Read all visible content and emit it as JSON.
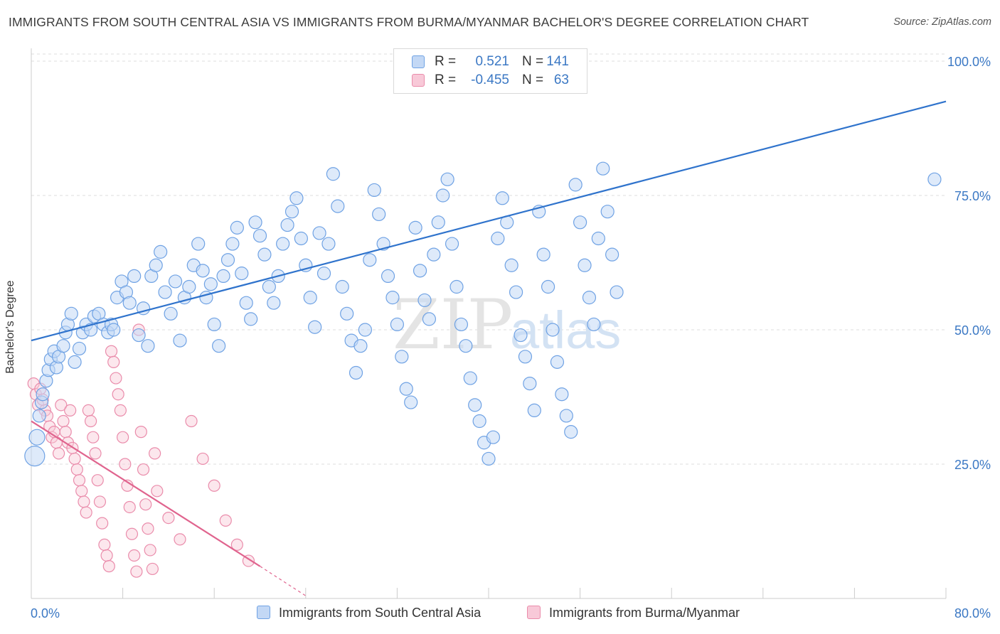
{
  "title": "IMMIGRANTS FROM SOUTH CENTRAL ASIA VS IMMIGRANTS FROM BURMA/MYANMAR BACHELOR'S DEGREE CORRELATION CHART",
  "source": "Source: ZipAtlas.com",
  "watermark": {
    "zip": "ZIP",
    "atlas": "atlas"
  },
  "legend": {
    "r_label": "R =",
    "n_label": "N =",
    "rows": [
      {
        "r": "0.521",
        "n": "141",
        "color": "#6fa2e4",
        "fill": "#c3d8f5"
      },
      {
        "r": "-0.455",
        "n": "63",
        "color": "#ea8cab",
        "fill": "#f8c9d8"
      }
    ]
  },
  "colors": {
    "blue": "#6fa2e4",
    "blue_line": "#2f73cc",
    "pink": "#ea8cab",
    "pink_line": "#e0648e",
    "value_text": "#3b78c4",
    "grid": "#dddddd"
  },
  "chart_data": {
    "type": "scatter",
    "xlabel": "",
    "ylabel": "Bachelor's Degree",
    "xlim": [
      0,
      80
    ],
    "ylim": [
      0,
      100
    ],
    "x_tick_labels": [
      "0.0%",
      "80.0%"
    ],
    "y_ticks": [
      25,
      50,
      75,
      100
    ],
    "y_tick_labels": [
      "25.0%",
      "50.0%",
      "75.0%",
      "100.0%"
    ],
    "grid": true,
    "legend_position": "bottom",
    "series": [
      {
        "name": "Immigrants from South Central Asia",
        "r": 0.521,
        "n": 141,
        "trend": {
          "x": [
            0,
            80
          ],
          "y": [
            48,
            92.5
          ]
        },
        "points": [
          [
            0.3,
            26.5
          ],
          [
            0.5,
            30
          ],
          [
            0.7,
            34
          ],
          [
            0.9,
            36.5
          ],
          [
            1.0,
            38
          ],
          [
            1.3,
            40.5
          ],
          [
            1.5,
            42.5
          ],
          [
            1.7,
            44.5
          ],
          [
            2.0,
            46
          ],
          [
            2.2,
            43
          ],
          [
            2.4,
            45
          ],
          [
            2.8,
            47
          ],
          [
            3.0,
            49.5
          ],
          [
            3.2,
            51
          ],
          [
            3.5,
            53
          ],
          [
            3.8,
            44
          ],
          [
            4.2,
            46.5
          ],
          [
            4.5,
            49.5
          ],
          [
            4.8,
            51
          ],
          [
            5.2,
            50
          ],
          [
            5.5,
            52.5
          ],
          [
            5.9,
            53
          ],
          [
            6.3,
            51
          ],
          [
            6.7,
            49.5
          ],
          [
            7.0,
            51
          ],
          [
            7.2,
            50
          ],
          [
            7.5,
            56
          ],
          [
            7.9,
            59
          ],
          [
            8.3,
            57
          ],
          [
            8.6,
            55
          ],
          [
            9.0,
            60
          ],
          [
            9.4,
            49
          ],
          [
            9.8,
            54
          ],
          [
            10.2,
            47
          ],
          [
            10.5,
            60
          ],
          [
            10.9,
            62
          ],
          [
            11.3,
            64.5
          ],
          [
            11.7,
            57
          ],
          [
            12.2,
            53
          ],
          [
            12.6,
            59
          ],
          [
            13.0,
            48
          ],
          [
            13.4,
            56
          ],
          [
            13.8,
            58
          ],
          [
            14.2,
            62
          ],
          [
            14.6,
            66
          ],
          [
            15.0,
            61
          ],
          [
            15.3,
            56
          ],
          [
            15.7,
            58.5
          ],
          [
            16.0,
            51
          ],
          [
            16.4,
            47
          ],
          [
            16.8,
            60
          ],
          [
            17.2,
            63
          ],
          [
            17.6,
            66
          ],
          [
            18.0,
            69
          ],
          [
            18.4,
            60.5
          ],
          [
            18.8,
            55
          ],
          [
            19.2,
            52
          ],
          [
            19.6,
            70
          ],
          [
            20.0,
            67.5
          ],
          [
            20.4,
            64
          ],
          [
            20.8,
            58
          ],
          [
            21.2,
            55
          ],
          [
            21.6,
            60
          ],
          [
            22.0,
            66
          ],
          [
            22.4,
            69.5
          ],
          [
            22.8,
            72
          ],
          [
            23.2,
            74.5
          ],
          [
            23.6,
            67
          ],
          [
            24.0,
            62
          ],
          [
            24.4,
            56
          ],
          [
            24.8,
            50.5
          ],
          [
            25.2,
            68
          ],
          [
            25.6,
            60.5
          ],
          [
            26.0,
            66
          ],
          [
            26.4,
            79
          ],
          [
            26.8,
            73
          ],
          [
            27.2,
            58
          ],
          [
            27.6,
            53
          ],
          [
            28.0,
            48
          ],
          [
            28.4,
            42
          ],
          [
            28.8,
            47
          ],
          [
            29.2,
            50
          ],
          [
            29.6,
            63
          ],
          [
            30.0,
            76
          ],
          [
            30.4,
            71.5
          ],
          [
            30.8,
            66
          ],
          [
            31.2,
            60
          ],
          [
            31.6,
            56
          ],
          [
            32.0,
            51
          ],
          [
            32.4,
            45
          ],
          [
            32.8,
            39
          ],
          [
            33.2,
            36.5
          ],
          [
            33.6,
            69
          ],
          [
            34.0,
            61
          ],
          [
            34.4,
            55.5
          ],
          [
            34.8,
            52
          ],
          [
            35.2,
            64
          ],
          [
            35.6,
            70
          ],
          [
            36.0,
            75
          ],
          [
            36.4,
            78
          ],
          [
            36.8,
            66
          ],
          [
            37.2,
            58
          ],
          [
            37.6,
            51
          ],
          [
            38.0,
            47
          ],
          [
            38.4,
            41
          ],
          [
            38.8,
            36
          ],
          [
            39.2,
            33
          ],
          [
            39.6,
            29
          ],
          [
            40.0,
            26
          ],
          [
            40.4,
            30
          ],
          [
            40.8,
            67
          ],
          [
            41.2,
            74.5
          ],
          [
            41.6,
            70
          ],
          [
            42.0,
            62
          ],
          [
            42.4,
            57
          ],
          [
            42.8,
            49
          ],
          [
            43.2,
            45
          ],
          [
            43.6,
            40
          ],
          [
            44.0,
            35
          ],
          [
            44.4,
            72
          ],
          [
            44.8,
            64
          ],
          [
            45.2,
            58
          ],
          [
            45.6,
            50
          ],
          [
            46.0,
            44
          ],
          [
            46.4,
            38
          ],
          [
            46.8,
            34
          ],
          [
            47.2,
            31
          ],
          [
            47.6,
            77
          ],
          [
            48.0,
            70
          ],
          [
            48.4,
            62
          ],
          [
            48.8,
            56
          ],
          [
            49.2,
            51
          ],
          [
            49.6,
            67
          ],
          [
            50.0,
            80
          ],
          [
            50.4,
            72
          ],
          [
            50.8,
            64
          ],
          [
            51.2,
            57
          ],
          [
            79.0,
            78
          ]
        ]
      },
      {
        "name": "Immigrants from Burma/Myanmar",
        "r": -0.455,
        "n": 63,
        "trend": {
          "x": [
            0,
            20
          ],
          "y": [
            33,
            6
          ]
        },
        "trend_dashed": {
          "x": [
            20,
            24
          ],
          "y": [
            6,
            0.5
          ]
        },
        "points": [
          [
            0.2,
            40
          ],
          [
            0.4,
            38
          ],
          [
            0.6,
            36
          ],
          [
            0.8,
            39
          ],
          [
            1.0,
            37
          ],
          [
            1.2,
            35
          ],
          [
            1.4,
            34
          ],
          [
            1.6,
            32
          ],
          [
            1.8,
            30
          ],
          [
            2.0,
            31
          ],
          [
            2.2,
            29
          ],
          [
            2.4,
            27
          ],
          [
            2.6,
            36
          ],
          [
            2.8,
            33
          ],
          [
            3.0,
            31
          ],
          [
            3.2,
            29
          ],
          [
            3.4,
            35
          ],
          [
            3.6,
            28
          ],
          [
            3.8,
            26
          ],
          [
            4.0,
            24
          ],
          [
            4.2,
            22
          ],
          [
            4.4,
            20
          ],
          [
            4.6,
            18
          ],
          [
            4.8,
            16
          ],
          [
            5.0,
            35
          ],
          [
            5.2,
            33
          ],
          [
            5.4,
            30
          ],
          [
            5.6,
            27
          ],
          [
            5.8,
            22
          ],
          [
            6.0,
            18
          ],
          [
            6.2,
            14
          ],
          [
            6.4,
            10
          ],
          [
            6.6,
            8
          ],
          [
            6.8,
            6
          ],
          [
            7.0,
            46
          ],
          [
            7.2,
            44
          ],
          [
            7.4,
            41
          ],
          [
            7.6,
            38
          ],
          [
            7.8,
            35
          ],
          [
            8.0,
            30
          ],
          [
            8.2,
            25
          ],
          [
            8.4,
            21
          ],
          [
            8.6,
            17
          ],
          [
            8.8,
            12
          ],
          [
            9.0,
            8
          ],
          [
            9.2,
            5
          ],
          [
            9.4,
            50
          ],
          [
            9.6,
            31
          ],
          [
            9.8,
            24
          ],
          [
            10.0,
            17.5
          ],
          [
            10.2,
            13
          ],
          [
            10.4,
            9
          ],
          [
            10.6,
            5.5
          ],
          [
            10.8,
            27
          ],
          [
            11.0,
            20
          ],
          [
            12.0,
            15
          ],
          [
            13.0,
            11
          ],
          [
            14.0,
            33
          ],
          [
            15.0,
            26
          ],
          [
            16.0,
            21
          ],
          [
            17.0,
            14.5
          ],
          [
            18.0,
            10
          ],
          [
            19.0,
            7
          ]
        ]
      }
    ]
  }
}
